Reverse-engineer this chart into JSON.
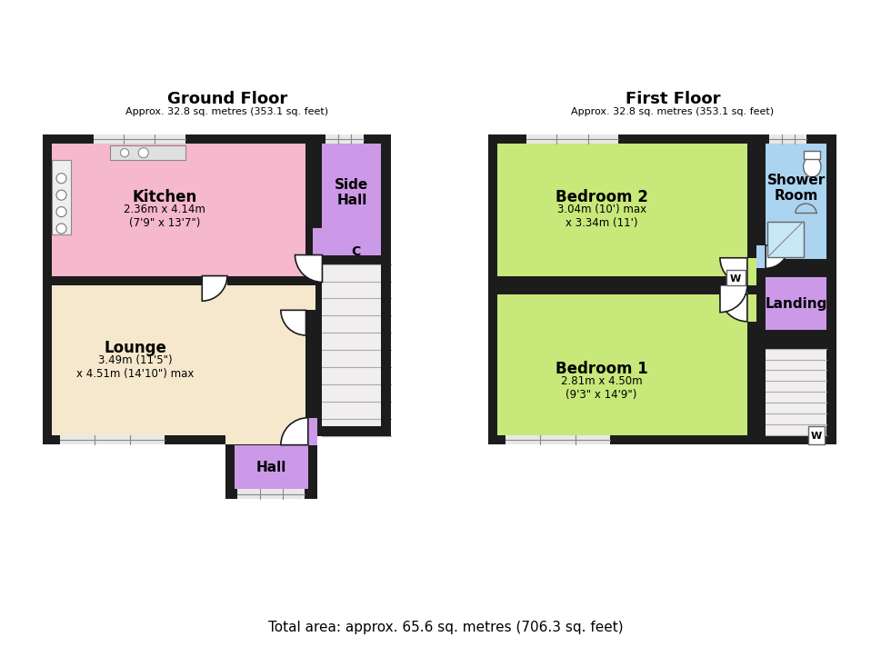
{
  "bg": "#ffffff",
  "wall_color": "#1c1c1c",
  "c_kitchen": "#f5b8cc",
  "c_side_hall": "#cc99e8",
  "c_lounge": "#f5e8cc",
  "c_hall": "#cc99e8",
  "c_bed1": "#c8e87a",
  "c_bed2": "#c8e87a",
  "c_shower": "#aad4f0",
  "c_landing": "#cc99e8",
  "c_stair": "#f0eeee",
  "c_window": "#cccccc",
  "title_gf": "Ground Floor",
  "sub_gf": "Approx. 32.8 sq. metres (353.1 sq. feet)",
  "title_ff": "First Floor",
  "sub_ff": "Approx. 32.8 sq. metres (353.1 sq. feet)",
  "footer": "Total area: approx. 65.6 sq. metres (706.3 sq. feet)",
  "lbl_kitchen": "Kitchen",
  "lbl_kitchen_sub": "2.36m x 4.14m\n(7'9\" x 13'7\")",
  "lbl_sidehall": "Side\nHall",
  "lbl_lounge": "Lounge",
  "lbl_lounge_sub": "3.49m (11'5\")\nx 4.51m (14'10\") max",
  "lbl_hall": "Hall",
  "lbl_bed1": "Bedroom 1",
  "lbl_bed1_sub": "2.81m x 4.50m\n(9'3\" x 14'9\")",
  "lbl_bed2": "Bedroom 2",
  "lbl_bed2_sub": "3.04m (10') max\nx 3.34m (11')",
  "lbl_shower": "Shower\nRoom",
  "lbl_landing": "Landing",
  "lbl_C": "C",
  "lbl_W": "W"
}
